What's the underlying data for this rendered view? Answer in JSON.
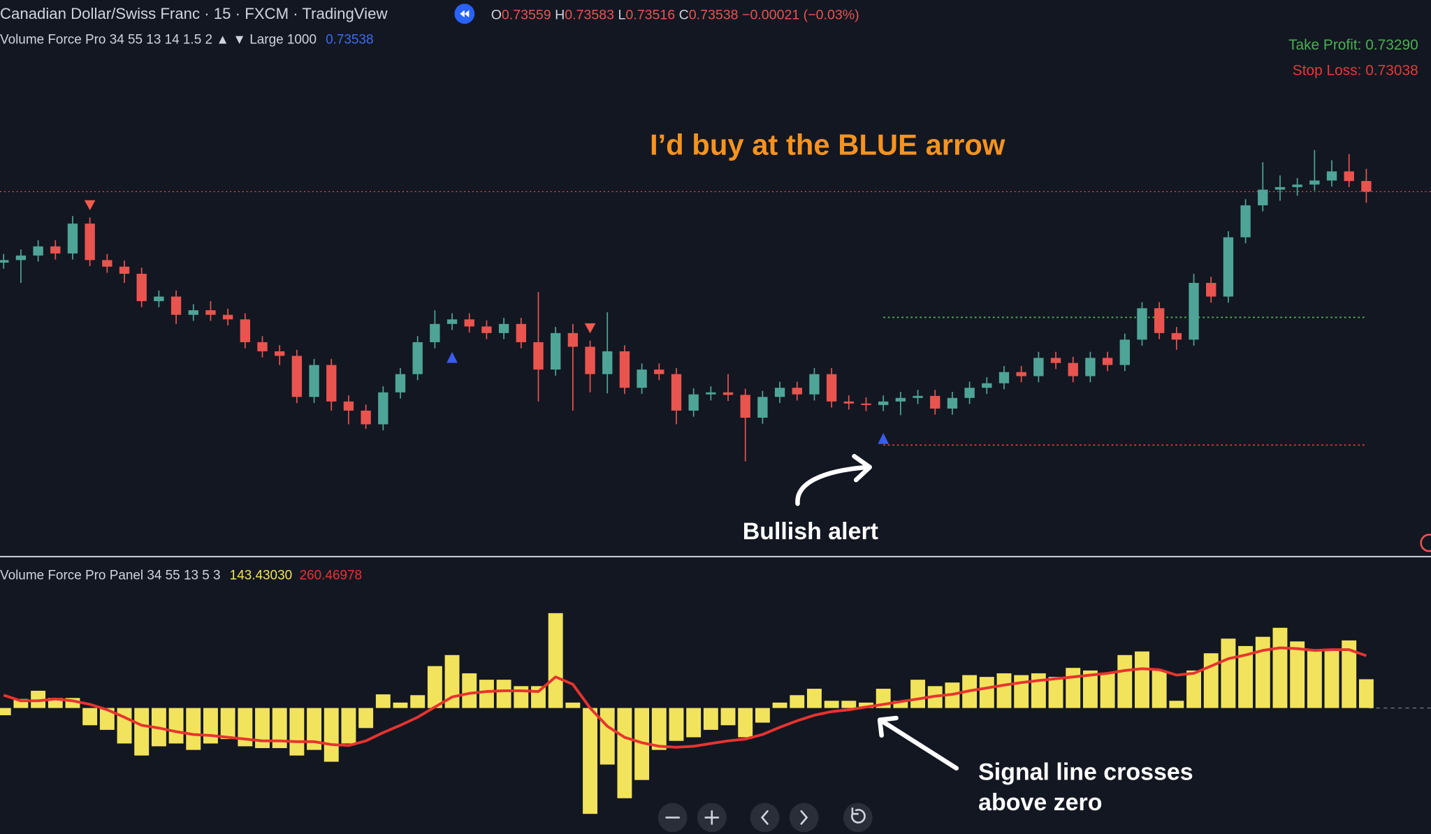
{
  "header": {
    "symbol": "Canadian Dollar/Swiss Franc · 15 · FXCM · TradingView",
    "ohlc": [
      {
        "label": "O",
        "value": "0.73559"
      },
      {
        "label": "H",
        "value": "0.73583"
      },
      {
        "label": "L",
        "value": "0.73516"
      },
      {
        "label": "C",
        "value": "0.73538"
      }
    ],
    "change": "−0.00021 (−0.03%)"
  },
  "chart_data": [
    {
      "type": "candlestick",
      "legend": "Volume Force Pro 34 55 13 14 1.5 2 ▲ ▼ Large 1000",
      "legend_value": "0.73538",
      "up_color": "#4ea597",
      "down_color": "#e9544f",
      "ylim": [
        0.72827,
        0.73808
      ],
      "open": [
        0.73398,
        0.73403,
        0.73412,
        0.7343,
        0.73416,
        0.73475,
        0.73403,
        0.7339,
        0.73376,
        0.73322,
        0.73331,
        0.73295,
        0.73304,
        0.73295,
        0.73286,
        0.73241,
        0.73223,
        0.73214,
        0.73133,
        0.73196,
        0.73124,
        0.73106,
        0.73079,
        0.73142,
        0.73178,
        0.73241,
        0.73277,
        0.73286,
        0.73272,
        0.73259,
        0.73277,
        0.73241,
        0.73187,
        0.73259,
        0.73232,
        0.73178,
        0.73223,
        0.73151,
        0.73187,
        0.73178,
        0.73106,
        0.73138,
        0.73142,
        0.73137,
        0.73092,
        0.73133,
        0.73151,
        0.73138,
        0.73178,
        0.73124,
        0.7312,
        0.73117,
        0.73124,
        0.73131,
        0.73135,
        0.7311,
        0.73131,
        0.73151,
        0.7316,
        0.73182,
        0.73174,
        0.7321,
        0.732,
        0.73174,
        0.7321,
        0.73196,
        0.73246,
        0.73308,
        0.73259,
        0.73246,
        0.73358,
        0.73331,
        0.73448,
        0.73511,
        0.73542,
        0.73547,
        0.73552,
        0.7356,
        0.73578,
        0.73559
      ],
      "high": [
        0.73415,
        0.73424,
        0.73442,
        0.73442,
        0.7349,
        0.73487,
        0.73415,
        0.73402,
        0.73388,
        0.73343,
        0.73343,
        0.73316,
        0.73322,
        0.73307,
        0.73298,
        0.73253,
        0.73235,
        0.73226,
        0.73208,
        0.73208,
        0.73136,
        0.73118,
        0.73154,
        0.7319,
        0.73253,
        0.73304,
        0.73298,
        0.73298,
        0.73284,
        0.73289,
        0.73289,
        0.7334,
        0.73271,
        0.73277,
        0.73244,
        0.733,
        0.73235,
        0.73199,
        0.73199,
        0.7319,
        0.7315,
        0.73154,
        0.73178,
        0.73149,
        0.73145,
        0.73163,
        0.73163,
        0.7319,
        0.7319,
        0.73136,
        0.73132,
        0.73136,
        0.73143,
        0.73147,
        0.73147,
        0.73143,
        0.73163,
        0.73172,
        0.73194,
        0.73194,
        0.73222,
        0.73222,
        0.73212,
        0.73222,
        0.73222,
        0.73258,
        0.7332,
        0.7332,
        0.73271,
        0.73376,
        0.7337,
        0.7346,
        0.73523,
        0.73596,
        0.7357,
        0.73565,
        0.7362,
        0.736,
        0.73612,
        0.73583
      ],
      "low": [
        0.73386,
        0.73358,
        0.734,
        0.73404,
        0.73404,
        0.73391,
        0.73378,
        0.73358,
        0.7331,
        0.7331,
        0.73277,
        0.73283,
        0.73283,
        0.73274,
        0.73229,
        0.73211,
        0.73196,
        0.73121,
        0.73121,
        0.73106,
        0.73079,
        0.7307,
        0.73067,
        0.7313,
        0.73166,
        0.73229,
        0.73265,
        0.7326,
        0.73247,
        0.73247,
        0.73229,
        0.73124,
        0.73175,
        0.73106,
        0.73142,
        0.7314,
        0.73139,
        0.73139,
        0.73166,
        0.73079,
        0.73094,
        0.73126,
        0.73125,
        0.73006,
        0.7308,
        0.73121,
        0.73126,
        0.73126,
        0.73112,
        0.73108,
        0.73105,
        0.73105,
        0.73097,
        0.73119,
        0.73098,
        0.73098,
        0.73119,
        0.73139,
        0.73148,
        0.73162,
        0.73162,
        0.73188,
        0.73162,
        0.73162,
        0.73184,
        0.73184,
        0.73234,
        0.73247,
        0.73226,
        0.73234,
        0.73319,
        0.73319,
        0.73436,
        0.73499,
        0.7352,
        0.7353,
        0.7354,
        0.73548,
        0.73547,
        0.73516
      ],
      "close": [
        0.73403,
        0.73412,
        0.7343,
        0.73416,
        0.73475,
        0.73403,
        0.7339,
        0.73376,
        0.73322,
        0.73331,
        0.73295,
        0.73304,
        0.73295,
        0.73286,
        0.73241,
        0.73223,
        0.73214,
        0.73133,
        0.73196,
        0.73124,
        0.73106,
        0.73079,
        0.73142,
        0.73178,
        0.73241,
        0.73277,
        0.73286,
        0.73272,
        0.73259,
        0.73277,
        0.73241,
        0.73187,
        0.73259,
        0.73232,
        0.73178,
        0.73223,
        0.73151,
        0.73187,
        0.73178,
        0.73106,
        0.73138,
        0.73142,
        0.73137,
        0.73092,
        0.73133,
        0.73151,
        0.73138,
        0.73178,
        0.73124,
        0.7312,
        0.73117,
        0.73124,
        0.73131,
        0.73135,
        0.7311,
        0.73131,
        0.73151,
        0.7316,
        0.73182,
        0.73174,
        0.7321,
        0.732,
        0.73174,
        0.7321,
        0.73196,
        0.73246,
        0.73308,
        0.73259,
        0.73246,
        0.73358,
        0.73331,
        0.73448,
        0.73511,
        0.73542,
        0.73547,
        0.73552,
        0.7356,
        0.73578,
        0.73559,
        0.73538
      ],
      "price_line": {
        "value": 0.73538,
        "color": "#e9544f"
      },
      "levels": [
        {
          "value": 0.7329,
          "label": "Take Profit: 0.73290",
          "color": "#4caf50"
        },
        {
          "value": 0.73038,
          "label": "Stop Loss: 0.73038",
          "color": "#e53935"
        }
      ],
      "buy_signals": [
        26,
        51
      ],
      "sell_signals": [
        5,
        34
      ],
      "buy_color": "#3b5bf0",
      "sell_color": "#ef5d4f",
      "annotations": [
        "I’d buy at the BLUE arrow",
        "Bullish alert"
      ]
    },
    {
      "type": "bar",
      "legend": "Volume Force Pro Panel 34 55 13 5 3",
      "ylim": [
        -628,
        746
      ],
      "series": [
        {
          "type": "bar",
          "color": "#f2e35c",
          "value_label": "143.43030",
          "values": [
            -36,
            45,
            86,
            50,
            50,
            -86,
            -109,
            -177,
            -237,
            -191,
            -177,
            -209,
            -177,
            -155,
            -191,
            -200,
            -200,
            -237,
            -209,
            -268,
            -177,
            -100,
            68,
            27,
            64,
            209,
            264,
            173,
            141,
            141,
            109,
            109,
            473,
            27,
            -528,
            -282,
            -450,
            -359,
            -209,
            -164,
            -146,
            -109,
            -86,
            -146,
            -73,
            27,
            64,
            96,
            36,
            36,
            27,
            96,
            36,
            141,
            109,
            127,
            164,
            155,
            173,
            164,
            173,
            155,
            200,
            187,
            173,
            264,
            282,
            187,
            36,
            187,
            273,
            346,
            309,
            355,
            400,
            332,
            291,
            291,
            337,
            143.4303
          ]
        },
        {
          "type": "line",
          "color": "#e8332f",
          "value_label": "260.46978",
          "values": [
            64,
            36,
            36,
            45,
            36,
            18,
            -9,
            -46,
            -86,
            -100,
            -118,
            -132,
            -137,
            -146,
            -155,
            -164,
            -164,
            -168,
            -168,
            -182,
            -187,
            -164,
            -123,
            -86,
            -46,
            5,
            55,
            73,
            82,
            86,
            86,
            82,
            155,
            118,
            0,
            -91,
            -146,
            -173,
            -191,
            -196,
            -191,
            -177,
            -164,
            -155,
            -132,
            -96,
            -64,
            -36,
            -18,
            -9,
            5,
            18,
            32,
            45,
            59,
            68,
            86,
            100,
            114,
            127,
            137,
            146,
            155,
            164,
            173,
            187,
            196,
            191,
            164,
            173,
            209,
            246,
            264,
            287,
            300,
            296,
            287,
            291,
            291,
            260.46978
          ]
        }
      ],
      "annotation": [
        "Signal line crosses",
        "above zero"
      ]
    }
  ]
}
